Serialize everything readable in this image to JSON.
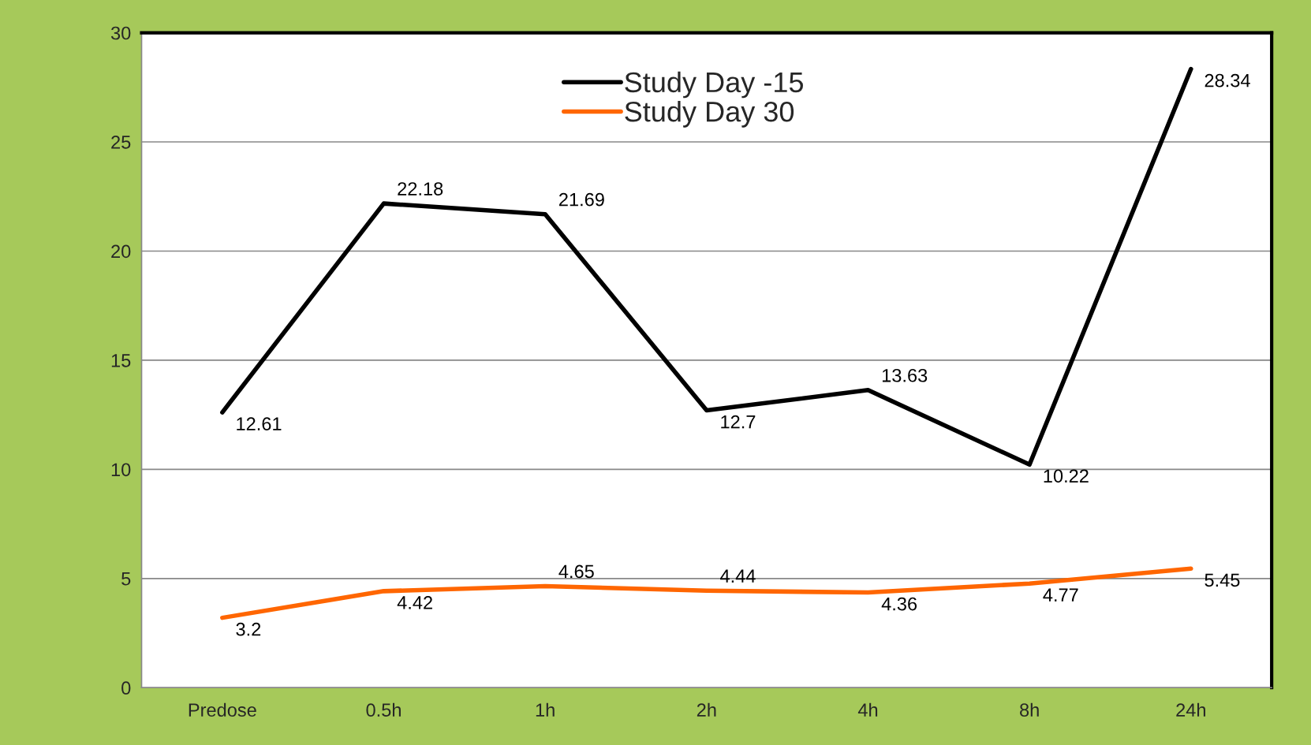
{
  "chart_data": {
    "type": "line",
    "categories": [
      "Predose",
      "0.5h",
      "1h",
      "2h",
      "4h",
      "8h",
      "24h"
    ],
    "series": [
      {
        "name": "Study Day -15",
        "color": "#000000",
        "values": [
          12.61,
          22.18,
          21.69,
          12.7,
          13.63,
          10.22,
          28.34
        ]
      },
      {
        "name": "Study Day 30",
        "color": "#ff6600",
        "values": [
          3.2,
          4.42,
          4.65,
          4.44,
          4.36,
          4.77,
          5.45
        ]
      }
    ],
    "ylim": [
      0,
      30
    ],
    "yticks": [
      0,
      5,
      10,
      15,
      20,
      25,
      30
    ],
    "grid": "y",
    "legend": "top",
    "data_labels": true,
    "marker": "none",
    "line_style": "solid"
  }
}
